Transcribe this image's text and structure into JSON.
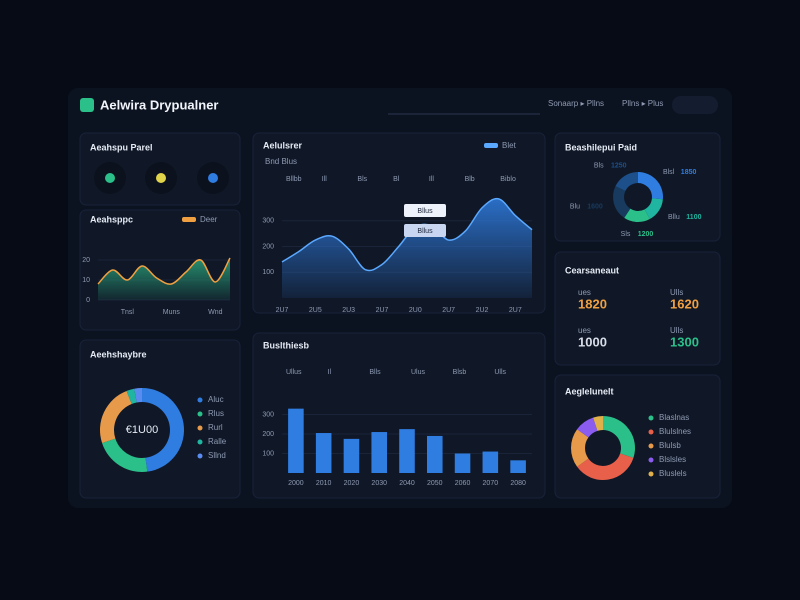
{
  "header": {
    "title": "Aelwira Drypualner",
    "nav": [
      "Sonaarp ▸ Pllns",
      "Pllns ▸ Plus"
    ]
  },
  "status": {
    "title": "Aeahspu Parel"
  },
  "stats": {
    "title": "Cearsaneaut",
    "items": [
      {
        "label": "ues",
        "value": 1820,
        "color": "#f0a040"
      },
      {
        "label": "Ulls",
        "value": 1620,
        "color": "#f0a040"
      },
      {
        "label": "ues",
        "value": 1000,
        "color": "#d8dde8"
      },
      {
        "label": "Ulls",
        "value": 1300,
        "color": "#2bbf8a"
      }
    ]
  },
  "chart_data": [
    {
      "type": "area",
      "title": "Aeahsppc",
      "categories": [
        null,
        null,
        "Tnsl",
        null,
        null,
        "Muns",
        null,
        null,
        "Wnd",
        null
      ],
      "series": [
        {
          "name": "Deer",
          "color": "#2aa57c",
          "values": [
            8,
            15,
            10,
            17,
            11,
            8,
            14,
            20,
            9,
            21
          ]
        }
      ],
      "line_color": "#f0a040",
      "ylim": [
        0,
        30
      ],
      "yticks": [
        0,
        10,
        20
      ]
    },
    {
      "type": "area",
      "title": "Aelulsrer",
      "subtitle": "Bnd Blus",
      "filters": [
        "Bllbb",
        "Ill",
        "Bls",
        "Bl",
        "Ill",
        "Blb",
        "Biblo"
      ],
      "annotations": [
        "Bllus",
        "Bllus"
      ],
      "categories": [
        "2U7",
        null,
        "2U5",
        null,
        "2U3",
        null,
        "2U7",
        null,
        "2U0",
        null,
        "2U7",
        null,
        "2U2",
        null,
        "2U7",
        null
      ],
      "series": [
        {
          "name": "Blet",
          "color": "#2f7de1",
          "values": [
            140,
            180,
            225,
            240,
            190,
            110,
            130,
            200,
            275,
            280,
            225,
            260,
            350,
            385,
            320,
            265
          ]
        }
      ],
      "line_color": "#5aa8ff",
      "ylim": [
        0,
        400
      ],
      "yticks": [
        100,
        200,
        300
      ]
    },
    {
      "type": "bar",
      "title": "Buslthiesb",
      "filters": [
        "Ullus",
        "Il",
        "Blls",
        "Ulus",
        "Blsb",
        "Ulls"
      ],
      "categories": [
        "2000",
        "2010",
        "2020",
        "2030",
        "2040",
        "2050",
        "2060",
        "2070",
        "2080"
      ],
      "values": [
        330,
        205,
        175,
        210,
        225,
        190,
        100,
        110,
        65
      ],
      "color": "#2f7de1",
      "ylim": [
        0,
        400
      ],
      "yticks": [
        100,
        200,
        300
      ]
    },
    {
      "type": "donut",
      "title": "Aeehshaybre",
      "center": "€1U00",
      "categories": [
        "Aluc",
        "Rlus",
        "Rurl",
        "Ralle",
        "Sllnd"
      ],
      "values": [
        48,
        22,
        24,
        3,
        3
      ],
      "colors": [
        "#2f7de1",
        "#2bbf8a",
        "#e79a4a",
        "#1fb5a0",
        "#5a8cf0"
      ]
    },
    {
      "type": "donut",
      "title": "Beashilepui Paid",
      "categories": [
        "Blsl",
        "Bllu",
        "Sls",
        "Blu",
        "Bls"
      ],
      "values": [
        1850,
        1100,
        1200,
        1600,
        1250
      ],
      "colors": [
        "#2f7de1",
        "#1fb5a0",
        "#2bbf8a",
        "#173a5e",
        "#1d4f8a"
      ]
    },
    {
      "type": "donut",
      "title": "Aeglelunelt",
      "categories": [
        "Blaslnas",
        "Blulslnes",
        "Blulsb",
        "Blslsles",
        "Bluslels"
      ],
      "values": [
        30,
        35,
        20,
        10,
        5
      ],
      "colors": [
        "#2bbf8a",
        "#e8604a",
        "#e79a4a",
        "#8a5cf0",
        "#e0b04a"
      ]
    }
  ]
}
